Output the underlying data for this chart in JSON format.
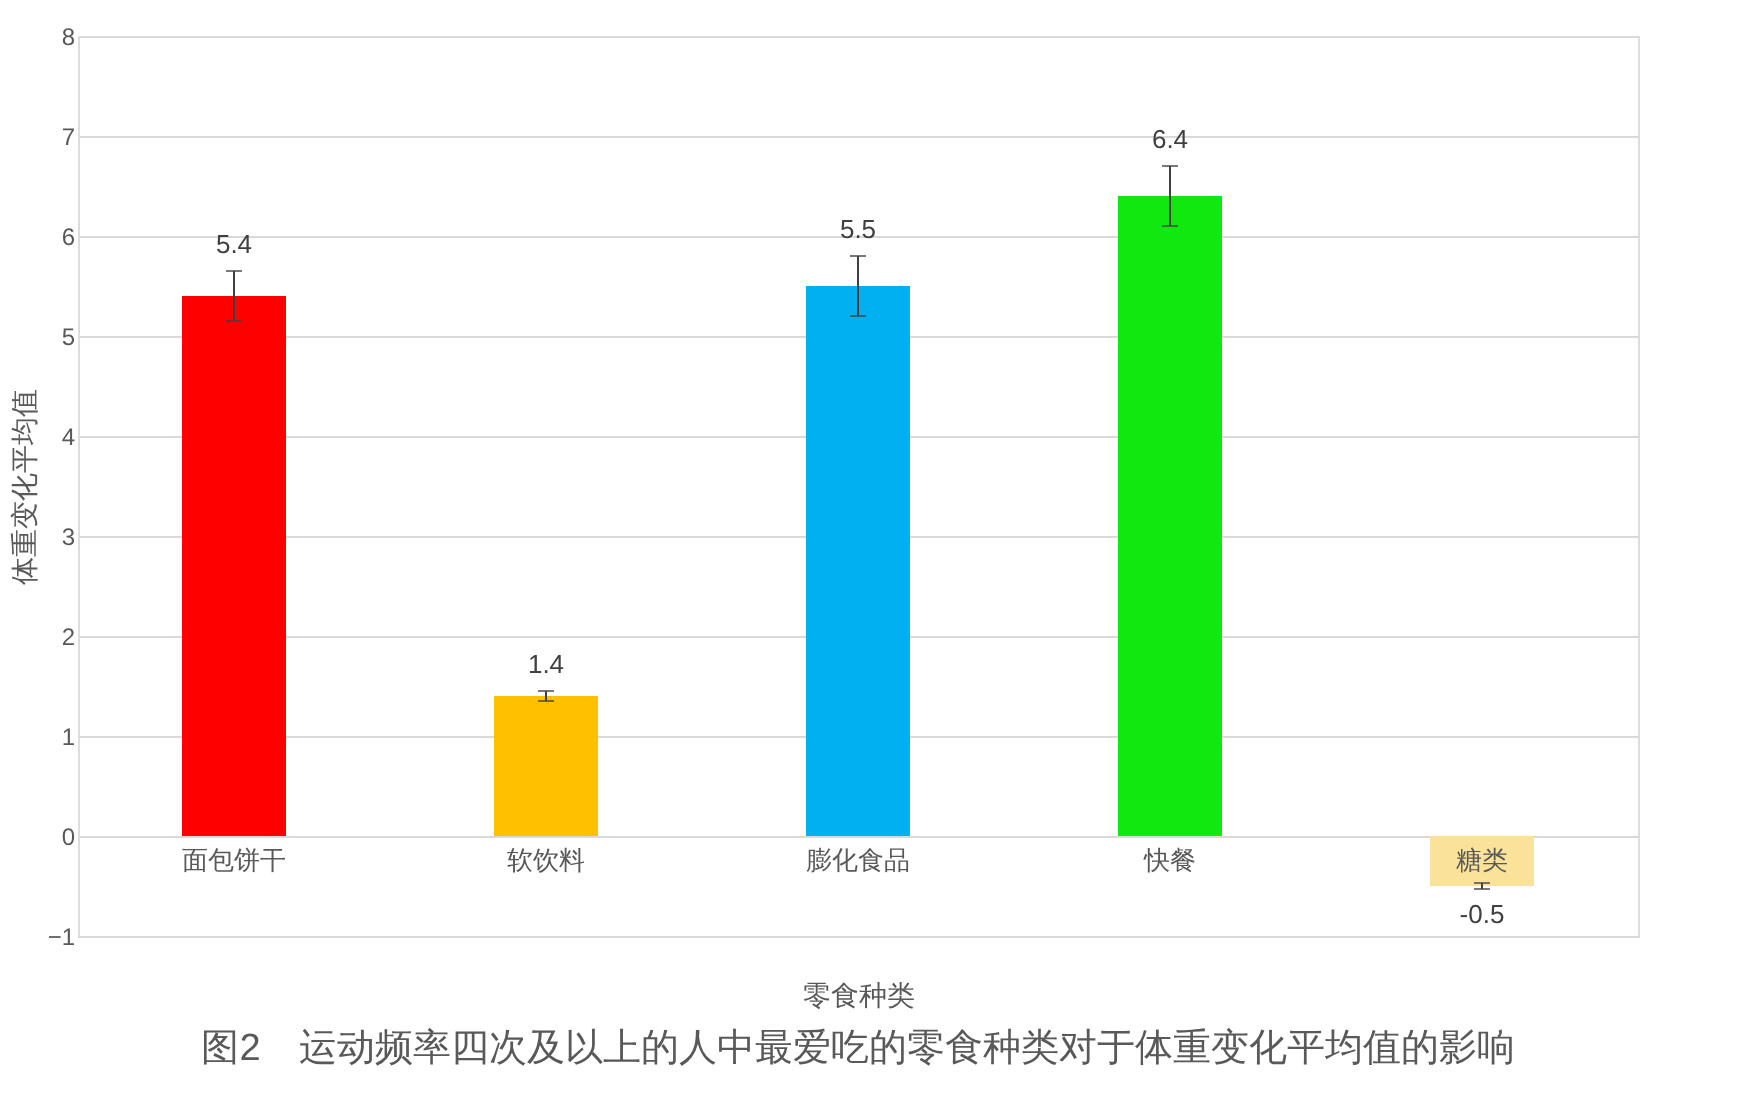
{
  "chart_data": {
    "type": "bar",
    "title": "图2　运动频率四次及以上的人中最爱吃的零食种类对于体重变化平均值的影响",
    "xlabel": "零食种类",
    "ylabel": "体重变化平均值",
    "categories": [
      "面包饼干",
      "软饮料",
      "膨化食品",
      "快餐",
      "糖类"
    ],
    "values": [
      5.4,
      1.4,
      5.5,
      6.4,
      -0.5
    ],
    "colors": [
      "#fe0000",
      "#ffc000",
      "#00b0f0",
      "#10e810",
      "#fbe29a"
    ],
    "errors": [
      0.25,
      0.05,
      0.3,
      0.3,
      0.03
    ],
    "data_labels": true,
    "ylim": [
      -1,
      8
    ],
    "yticks": [
      -1,
      0,
      1,
      2,
      3,
      4,
      5,
      6,
      7,
      8
    ],
    "grid": "y"
  }
}
